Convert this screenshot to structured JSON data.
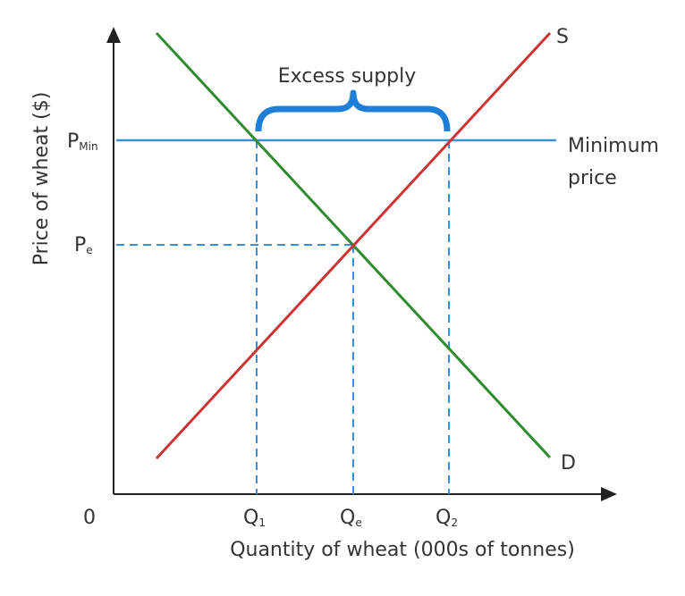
{
  "axes": {
    "y_label": "Price of wheat ($)",
    "x_label": "Quantity of wheat (000s of tonnes)",
    "origin": "0"
  },
  "y_ticks": [
    {
      "main": "P",
      "sub": "Min"
    },
    {
      "main": "P",
      "sub": "e"
    }
  ],
  "x_ticks": [
    {
      "main": "Q",
      "sub": "1"
    },
    {
      "main": "Q",
      "sub": "e"
    },
    {
      "main": "Q",
      "sub": "2"
    }
  ],
  "curves": {
    "supply": "S",
    "demand": "D"
  },
  "annotations": {
    "excess_supply": "Excess supply",
    "minimum_price": [
      "Minimum",
      "price"
    ]
  }
}
